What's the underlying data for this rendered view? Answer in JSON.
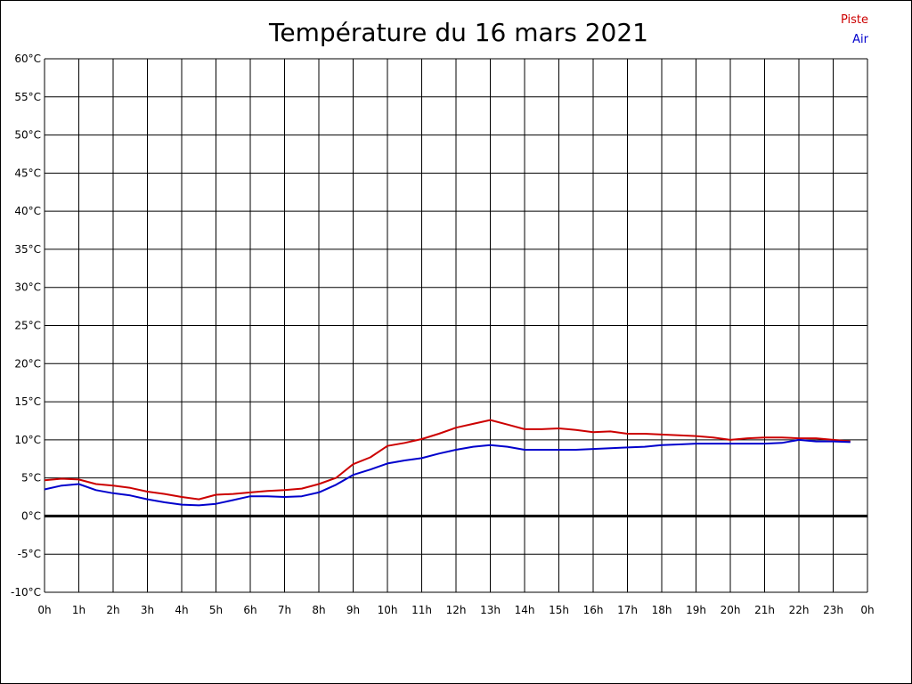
{
  "chart_data": {
    "type": "line",
    "title": "Température du 16 mars 2021",
    "xlabel": "",
    "ylabel": "",
    "x_tick_labels": [
      "0h",
      "1h",
      "2h",
      "3h",
      "4h",
      "5h",
      "6h",
      "7h",
      "8h",
      "9h",
      "10h",
      "11h",
      "12h",
      "13h",
      "14h",
      "15h",
      "16h",
      "17h",
      "18h",
      "19h",
      "20h",
      "21h",
      "22h",
      "23h",
      "0h"
    ],
    "y_tick_labels": [
      "60°C",
      "55°C",
      "50°C",
      "45°C",
      "40°C",
      "35°C",
      "30°C",
      "25°C",
      "20°C",
      "15°C",
      "10°C",
      "5°C",
      "0°C",
      "-5°C",
      "-10°C"
    ],
    "xlim": [
      0,
      24
    ],
    "ylim": [
      -10,
      60
    ],
    "grid": true,
    "zero_line": true,
    "legend_position": "top-right",
    "series": [
      {
        "name": "Piste",
        "color": "#cc0000",
        "x": [
          0,
          0.5,
          1,
          1.5,
          2,
          2.5,
          3,
          3.5,
          4,
          4.5,
          5,
          5.5,
          6,
          6.5,
          7,
          7.5,
          8,
          8.5,
          9,
          9.5,
          10,
          10.5,
          11,
          11.5,
          12,
          12.5,
          13,
          13.5,
          14,
          14.5,
          15,
          15.5,
          16,
          16.5,
          17,
          17.5,
          18,
          18.5,
          19,
          19.5,
          20,
          20.5,
          21,
          21.5,
          22,
          22.5,
          23,
          23.5
        ],
        "values": [
          4.7,
          4.9,
          4.8,
          4.2,
          4.0,
          3.7,
          3.2,
          2.9,
          2.5,
          2.2,
          2.8,
          2.9,
          3.1,
          3.3,
          3.4,
          3.6,
          4.2,
          5.0,
          6.8,
          7.7,
          9.2,
          9.6,
          10.1,
          10.8,
          11.6,
          12.1,
          12.6,
          12.0,
          11.4,
          11.4,
          11.5,
          11.3,
          11.0,
          11.1,
          10.8,
          10.8,
          10.7,
          10.6,
          10.5,
          10.3,
          10.0,
          10.2,
          10.3,
          10.3,
          10.2,
          10.2,
          10.0,
          9.8
        ]
      },
      {
        "name": "Air",
        "color": "#0000cc",
        "x": [
          0,
          0.5,
          1,
          1.5,
          2,
          2.5,
          3,
          3.5,
          4,
          4.5,
          5,
          5.5,
          6,
          6.5,
          7,
          7.5,
          8,
          8.5,
          9,
          9.5,
          10,
          10.5,
          11,
          11.5,
          12,
          12.5,
          13,
          13.5,
          14,
          14.5,
          15,
          15.5,
          16,
          16.5,
          17,
          17.5,
          18,
          18.5,
          19,
          19.5,
          20,
          20.5,
          21,
          21.5,
          22,
          22.5,
          23,
          23.5
        ],
        "values": [
          3.5,
          4.0,
          4.2,
          3.4,
          3.0,
          2.7,
          2.2,
          1.8,
          1.5,
          1.4,
          1.6,
          2.1,
          2.6,
          2.6,
          2.5,
          2.6,
          3.1,
          4.1,
          5.4,
          6.1,
          6.9,
          7.3,
          7.6,
          8.2,
          8.7,
          9.1,
          9.3,
          9.1,
          8.7,
          8.7,
          8.7,
          8.7,
          8.8,
          8.9,
          9.0,
          9.1,
          9.3,
          9.4,
          9.5,
          9.5,
          9.5,
          9.5,
          9.5,
          9.6,
          10.0,
          9.8,
          9.8,
          9.7
        ]
      }
    ]
  }
}
